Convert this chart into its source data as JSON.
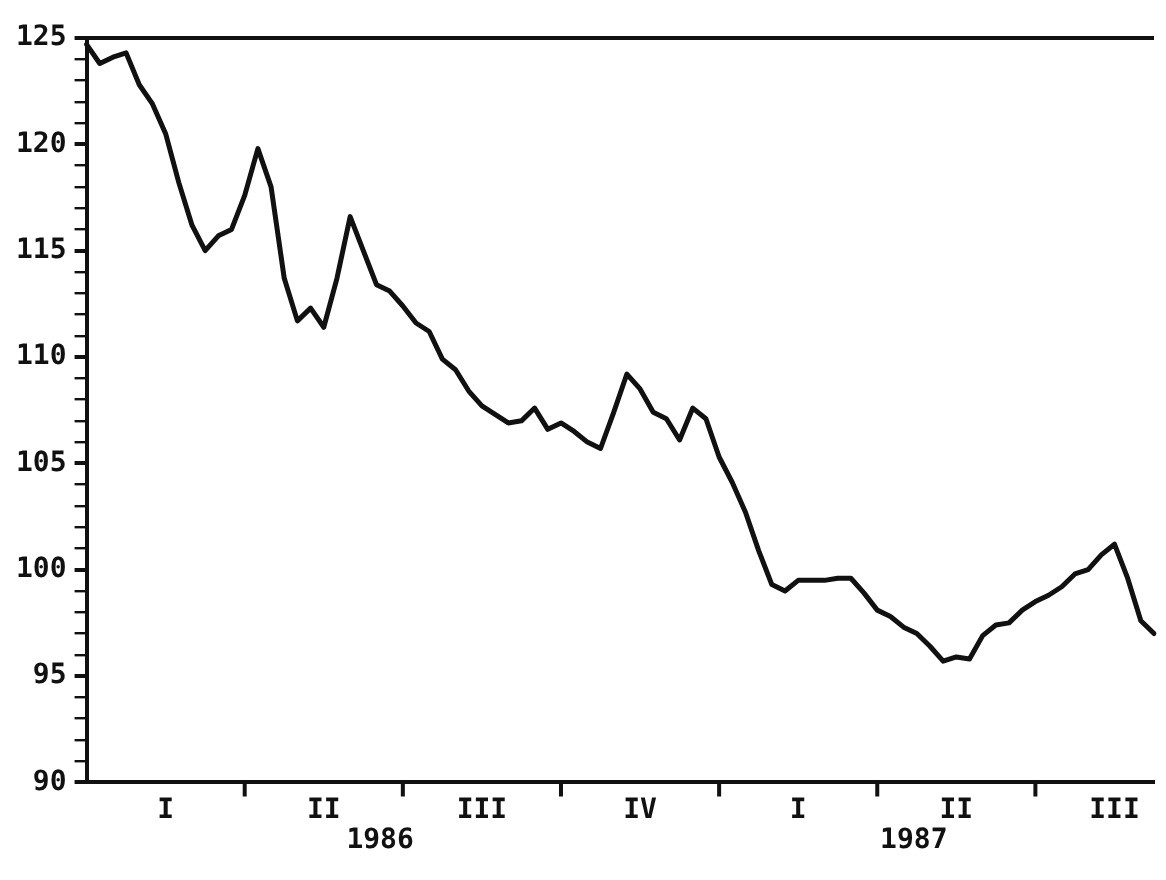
{
  "chart_data": {
    "type": "line",
    "categories": [
      null,
      null,
      null,
      null,
      null,
      null,
      "I",
      null,
      null,
      null,
      null,
      null,
      null,
      null,
      null,
      null,
      null,
      null,
      "II",
      null,
      null,
      null,
      null,
      null,
      null,
      null,
      null,
      null,
      null,
      null,
      "III",
      null,
      null,
      null,
      null,
      null,
      null,
      null,
      null,
      null,
      null,
      null,
      "IV",
      null,
      null,
      null,
      null,
      null,
      null,
      null,
      null,
      null,
      null,
      null,
      "I",
      null,
      null,
      null,
      null,
      null,
      null,
      null,
      null,
      null,
      null,
      null,
      "II",
      null,
      null,
      null,
      null,
      null,
      null,
      null,
      null,
      null,
      null,
      null,
      "III",
      null,
      null,
      null
    ],
    "series": [
      {
        "color": "#111111",
        "values": [
          124.7,
          123.8,
          124.1,
          124.3,
          122.8,
          121.9,
          120.5,
          118.2,
          116.2,
          115.0,
          115.7,
          116.0,
          117.6,
          119.8,
          118.0,
          113.7,
          111.7,
          112.3,
          111.4,
          113.7,
          116.6,
          115.0,
          113.4,
          113.1,
          112.4,
          111.6,
          111.2,
          109.9,
          109.4,
          108.4,
          107.7,
          107.3,
          106.9,
          107.0,
          107.6,
          106.6,
          106.9,
          106.5,
          106.0,
          105.7,
          107.4,
          109.2,
          108.5,
          107.4,
          107.1,
          106.1,
          107.6,
          107.1,
          105.3,
          104.1,
          102.7,
          100.9,
          99.3,
          99.0,
          99.5,
          99.5,
          99.5,
          99.6,
          99.6,
          98.9,
          98.1,
          97.8,
          97.3,
          97.0,
          96.4,
          95.7,
          95.9,
          95.8,
          96.9,
          97.4,
          97.5,
          98.1,
          98.5,
          98.8,
          99.2,
          99.8,
          100.0,
          100.7,
          101.2,
          99.6,
          97.6,
          97.0
        ]
      }
    ],
    "ylim": [
      90,
      125
    ],
    "yticks": [
      90,
      {
        "value": 91,
        "label": null
      },
      {
        "value": 92,
        "label": null
      },
      {
        "value": 93,
        "label": null
      },
      {
        "value": 94,
        "label": null
      },
      95,
      {
        "value": 96,
        "label": null
      },
      {
        "value": 97,
        "label": null
      },
      {
        "value": 98,
        "label": null
      },
      {
        "value": 99,
        "label": null
      },
      100,
      {
        "value": 101,
        "label": null
      },
      {
        "value": 102,
        "label": null
      },
      {
        "value": 103,
        "label": null
      },
      {
        "value": 104,
        "label": null
      },
      105,
      {
        "value": 106,
        "label": null
      },
      {
        "value": 107,
        "label": null
      },
      {
        "value": 108,
        "label": null
      },
      {
        "value": 109,
        "label": null
      },
      110,
      {
        "value": 111,
        "label": null
      },
      {
        "value": 112,
        "label": null
      },
      {
        "value": 113,
        "label": null
      },
      {
        "value": 114,
        "label": null
      },
      115,
      {
        "value": 116,
        "label": null
      },
      {
        "value": 117,
        "label": null
      },
      {
        "value": 118,
        "label": null
      },
      {
        "value": 119,
        "label": null
      },
      120,
      {
        "value": 121,
        "label": null
      },
      {
        "value": 122,
        "label": null
      },
      {
        "value": 123,
        "label": null
      },
      {
        "value": 124,
        "label": null
      },
      125
    ],
    "annotations": [
      "1986",
      "1987"
    ],
    "grid": false,
    "legend": false,
    "marker": "none",
    "line_style": "solid"
  }
}
